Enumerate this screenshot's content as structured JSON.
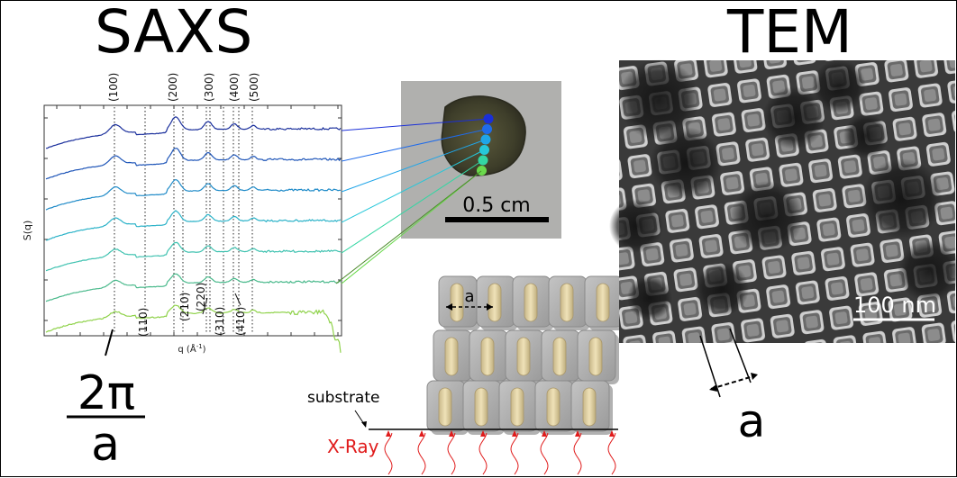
{
  "saxs": {
    "title": "SAXS",
    "ylabel": "S(q)",
    "xlabel_prefix": "q (Å",
    "xlabel_sup": "-1",
    "xlabel_suffix": ")",
    "top_peaks": [
      "(100)",
      "(200)",
      "(300)",
      "(400)",
      "(500)"
    ],
    "bottom_peaks": [
      "(110)",
      "(210)",
      "(220)",
      "(310)",
      "(410)"
    ],
    "formula_numerator": "2π",
    "formula_denominator": "a",
    "curve_colors": [
      "#1a2f9c",
      "#1e55b8",
      "#1e8ac8",
      "#2ab2c8",
      "#3fc2b0",
      "#49b98b",
      "#8fd24a"
    ]
  },
  "photo": {
    "scale_label": "0.5 cm",
    "spot_colors": [
      "#1a2fd8",
      "#1f6bea",
      "#1fa5e8",
      "#26c7d9",
      "#33d6a3",
      "#6ad94c"
    ]
  },
  "schematic": {
    "lattice_label": "a",
    "substrate_label": "substrate",
    "xray_label": "X-Ray",
    "xray_color": "#e01b1b"
  },
  "tem": {
    "title": "TEM",
    "scale_label": "100 nm",
    "lattice_label": "a"
  }
}
